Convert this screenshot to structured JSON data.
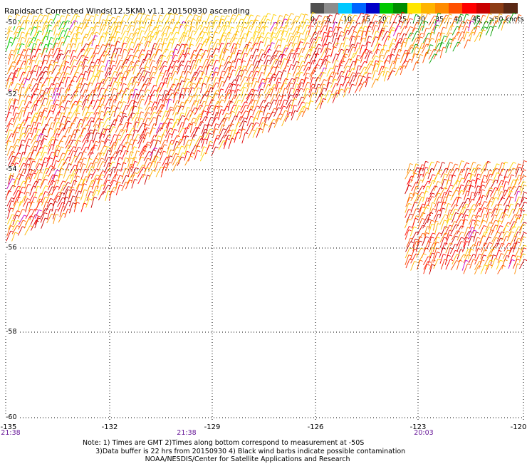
{
  "title": "Rapidsact Corrected Winds(12.5KM) v1.1 20150930 ascending",
  "legend": {
    "colors": [
      "#505050",
      "#8c8c8c",
      "#00c8ff",
      "#0064ff",
      "#0000c8",
      "#00c800",
      "#008c00",
      "#ffe600",
      "#ffb400",
      "#ff8c00",
      "#ff5000",
      "#ff0000",
      "#c80000",
      "#8c3c14",
      "#5a2814",
      "#ff00ff",
      "#c800c8",
      "#960096",
      "#46006e",
      "#2d0050"
    ],
    "tick_labels": [
      "0",
      "5",
      "10",
      "15",
      "20",
      "25",
      "30",
      "35",
      "40",
      "45",
      ">50 knots"
    ]
  },
  "axes": {
    "lon_labels": [
      "-135",
      "-132",
      "-129",
      "-126",
      "-123",
      "-120"
    ],
    "lat_labels": [
      "-50",
      "-52",
      "-54",
      "-56",
      "-58",
      "-60"
    ],
    "times": [
      "21:38",
      "21:38",
      "20:03"
    ]
  },
  "notes": [
    "Note: 1) Times are GMT 2)Times along bottom correspond to measurement at -50S",
    "      3)Data buffer is 22 hrs from 20150930 4) Black wind barbs indicate possible contamination",
    "                             NOAA/NESDIS/Center for Satellite Applications and Research"
  ]
}
